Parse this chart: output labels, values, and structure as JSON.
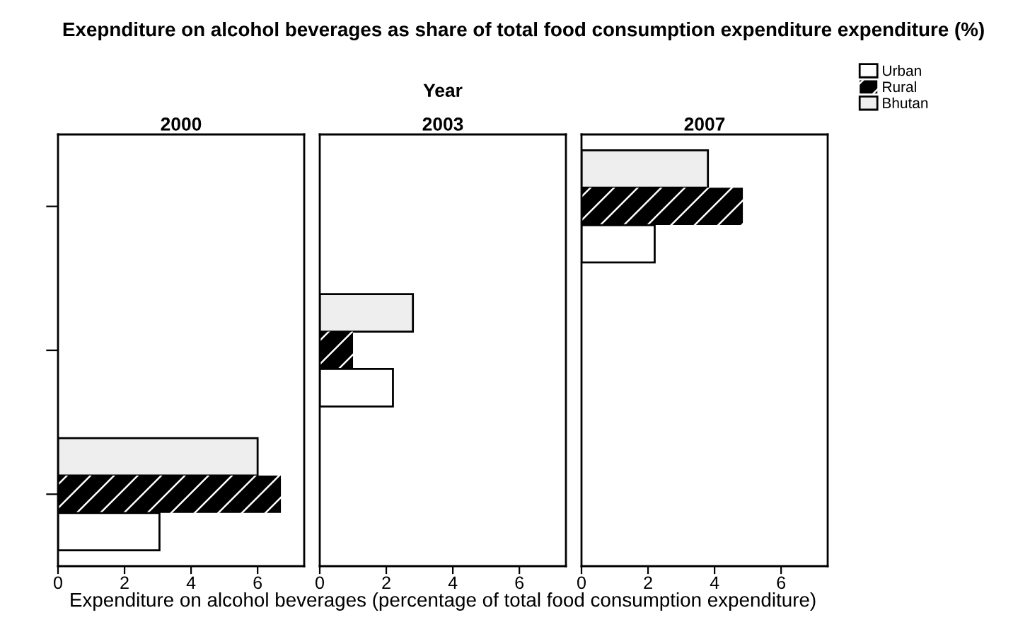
{
  "chart_data": [
    {
      "type": "bar",
      "orientation": "horizontal",
      "title": "2000",
      "xlabel": "Expenditure on alcohol beverages (percentage of total food consumption expenditure)",
      "annotations": [
        "Exepnditure on alcohol beverages as share of total food consumption expenditure expenditure (%)",
        "Year"
      ],
      "categories": [
        null,
        null,
        null
      ],
      "xlim": [
        0,
        7.4
      ],
      "xticks": [
        0,
        2,
        4,
        6
      ],
      "tick_labels": "x",
      "series": [
        {
          "color": "#eeeeee",
          "values": [
            null,
            null,
            6.0
          ]
        },
        {
          "color": "#000000",
          "values": [
            null,
            null,
            6.7
          ]
        },
        {
          "color": "#ffffff",
          "values": [
            null,
            null,
            3.05
          ]
        }
      ]
    },
    {
      "type": "bar",
      "orientation": "horizontal",
      "title": "2003",
      "categories": [
        null,
        null,
        null
      ],
      "xlim": [
        0,
        7.4
      ],
      "xticks": [
        0,
        2,
        4,
        6
      ],
      "tick_labels": "x",
      "series": [
        {
          "color": "#eeeeee",
          "values": [
            null,
            2.8,
            null
          ]
        },
        {
          "color": "#000000",
          "values": [
            null,
            1.0,
            null
          ]
        },
        {
          "color": "#ffffff",
          "values": [
            null,
            2.2,
            null
          ]
        }
      ]
    },
    {
      "type": "bar",
      "orientation": "horizontal",
      "title": "2007",
      "categories": [
        null,
        null,
        null
      ],
      "xlim": [
        0,
        7.4
      ],
      "xticks": [
        0,
        2,
        4,
        6
      ],
      "tick_labels": "x",
      "legend": "right",
      "series": [
        {
          "name": "Bhutan",
          "color": "#eeeeee",
          "values": [
            3.8,
            null,
            null
          ]
        },
        {
          "name": "Rural",
          "color": "#000000",
          "values": [
            4.85,
            null,
            null
          ]
        },
        {
          "name": "Urban",
          "color": "#ffffff",
          "values": [
            2.2,
            null,
            null
          ]
        }
      ]
    }
  ]
}
